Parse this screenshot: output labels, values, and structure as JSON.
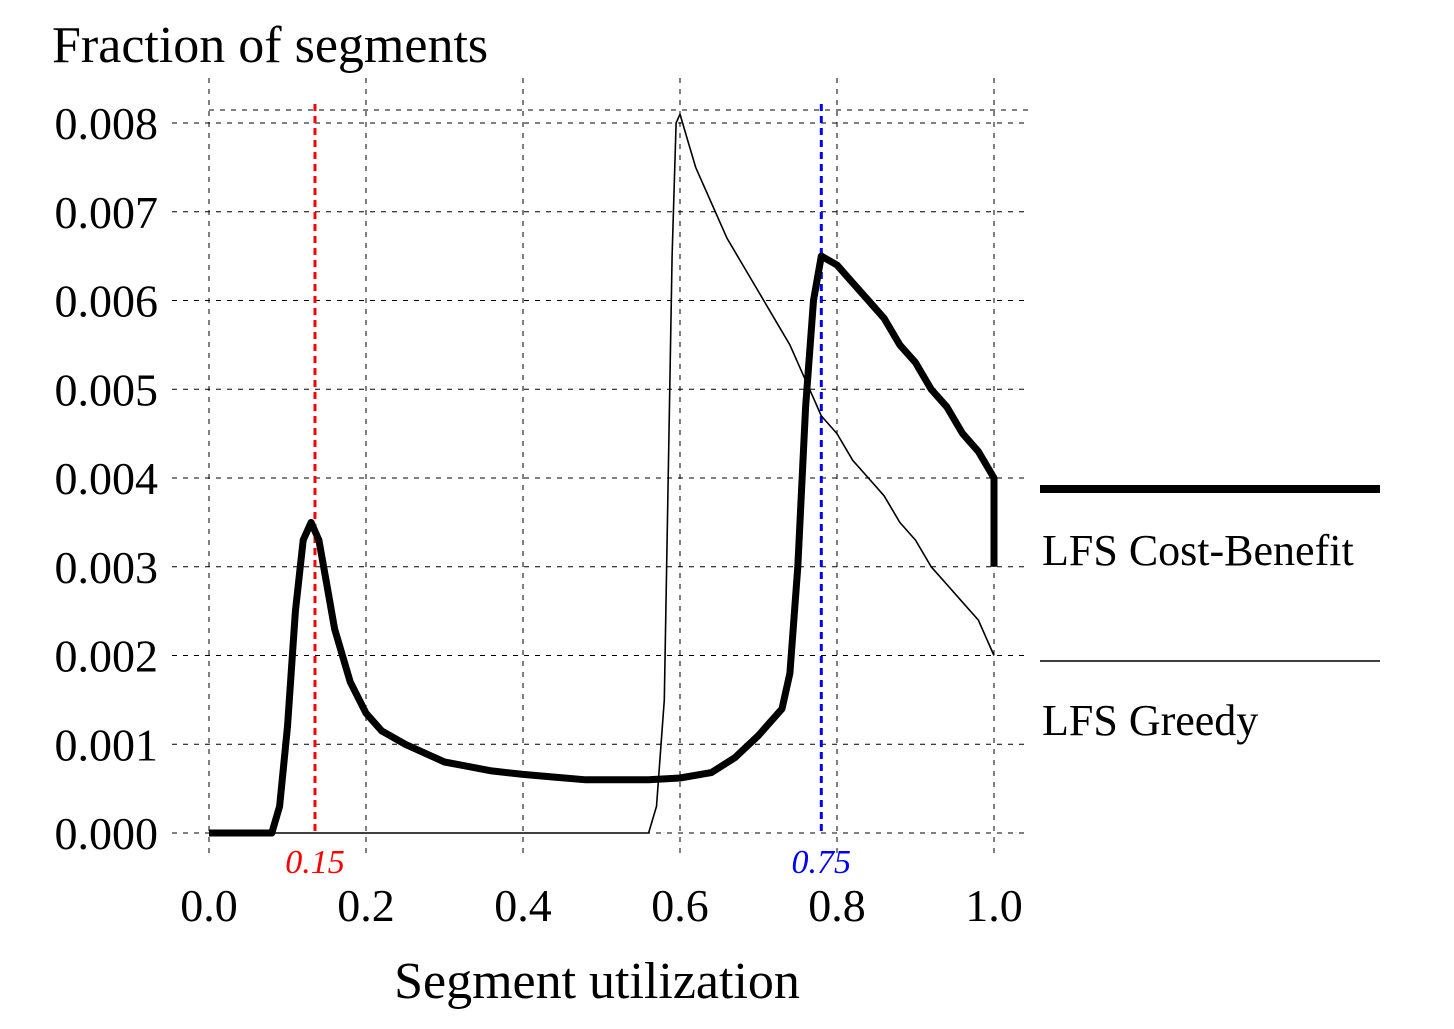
{
  "chart_data": {
    "type": "line",
    "title": "",
    "ylabel": "Fraction of segments",
    "xlabel": "Segment utilization",
    "xlim": [
      0.0,
      1.0
    ],
    "ylim": [
      0.0,
      0.008
    ],
    "x_ticks": [
      "0.0",
      "0.2",
      "0.4",
      "0.6",
      "0.8",
      "1.0"
    ],
    "y_ticks": [
      "0.000",
      "0.001",
      "0.002",
      "0.003",
      "0.004",
      "0.005",
      "0.006",
      "0.007",
      "0.008"
    ],
    "grid": true,
    "legend_position": "right",
    "series": [
      {
        "name": "LFS Cost-Benefit",
        "style": "thick",
        "color": "#000000",
        "points": [
          [
            0.0,
            0.0
          ],
          [
            0.05,
            0.0
          ],
          [
            0.08,
            0.0
          ],
          [
            0.09,
            0.0003
          ],
          [
            0.1,
            0.0012
          ],
          [
            0.11,
            0.0025
          ],
          [
            0.12,
            0.0033
          ],
          [
            0.13,
            0.0035
          ],
          [
            0.14,
            0.0033
          ],
          [
            0.15,
            0.0028
          ],
          [
            0.16,
            0.0023
          ],
          [
            0.18,
            0.0017
          ],
          [
            0.2,
            0.00135
          ],
          [
            0.22,
            0.00115
          ],
          [
            0.25,
            0.001
          ],
          [
            0.28,
            0.00088
          ],
          [
            0.3,
            0.0008
          ],
          [
            0.33,
            0.00075
          ],
          [
            0.36,
            0.0007
          ],
          [
            0.4,
            0.00066
          ],
          [
            0.44,
            0.00063
          ],
          [
            0.48,
            0.0006
          ],
          [
            0.52,
            0.0006
          ],
          [
            0.56,
            0.0006
          ],
          [
            0.6,
            0.00062
          ],
          [
            0.64,
            0.00068
          ],
          [
            0.67,
            0.00085
          ],
          [
            0.7,
            0.0011
          ],
          [
            0.73,
            0.0014
          ],
          [
            0.74,
            0.0018
          ],
          [
            0.75,
            0.003
          ],
          [
            0.76,
            0.0048
          ],
          [
            0.77,
            0.006
          ],
          [
            0.78,
            0.0065
          ],
          [
            0.8,
            0.0064
          ],
          [
            0.82,
            0.0062
          ],
          [
            0.84,
            0.006
          ],
          [
            0.86,
            0.0058
          ],
          [
            0.88,
            0.0055
          ],
          [
            0.9,
            0.0053
          ],
          [
            0.92,
            0.005
          ],
          [
            0.94,
            0.0048
          ],
          [
            0.96,
            0.0045
          ],
          [
            0.98,
            0.0043
          ],
          [
            1.0,
            0.004
          ],
          [
            1.0,
            0.003
          ]
        ]
      },
      {
        "name": "LFS Greedy",
        "style": "thin",
        "color": "#000000",
        "points": [
          [
            0.0,
            0.0
          ],
          [
            0.56,
            0.0
          ],
          [
            0.57,
            0.0003
          ],
          [
            0.58,
            0.0015
          ],
          [
            0.585,
            0.004
          ],
          [
            0.59,
            0.0065
          ],
          [
            0.595,
            0.008
          ],
          [
            0.6,
            0.0081
          ],
          [
            0.61,
            0.0078
          ],
          [
            0.62,
            0.0075
          ],
          [
            0.64,
            0.0071
          ],
          [
            0.66,
            0.0067
          ],
          [
            0.68,
            0.0064
          ],
          [
            0.7,
            0.0061
          ],
          [
            0.72,
            0.0058
          ],
          [
            0.74,
            0.0055
          ],
          [
            0.76,
            0.0051
          ],
          [
            0.77,
            0.0049
          ],
          [
            0.78,
            0.0047
          ],
          [
            0.8,
            0.0045
          ],
          [
            0.82,
            0.0042
          ],
          [
            0.84,
            0.004
          ],
          [
            0.86,
            0.0038
          ],
          [
            0.88,
            0.0035
          ],
          [
            0.9,
            0.0033
          ],
          [
            0.92,
            0.003
          ],
          [
            0.94,
            0.0028
          ],
          [
            0.96,
            0.0026
          ],
          [
            0.98,
            0.0024
          ],
          [
            1.0,
            0.002
          ]
        ]
      }
    ],
    "markers": [
      {
        "x": 0.135,
        "label": "0.15",
        "color": "#ff0000"
      },
      {
        "x": 0.78,
        "label": "0.75",
        "color": "#0000ff"
      }
    ]
  }
}
